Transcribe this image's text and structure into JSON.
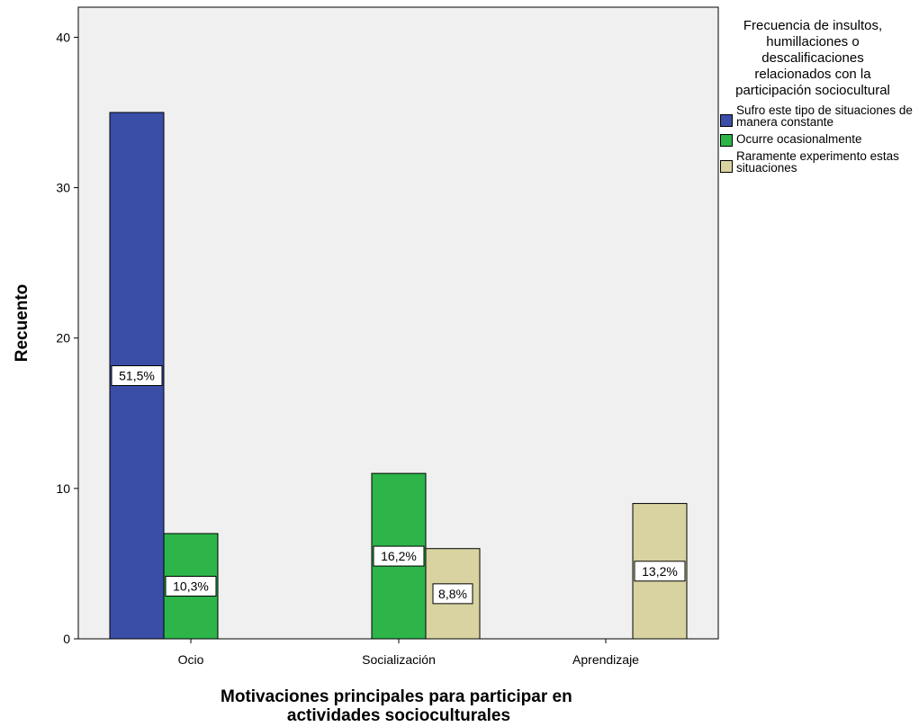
{
  "chart_data": {
    "type": "bar",
    "xlabel": "Motivaciones principales para participar en actividades socioculturales",
    "ylabel": "Recuento",
    "ylim": [
      0,
      42
    ],
    "yticks": [
      "0",
      "10",
      "20",
      "30",
      "40"
    ],
    "categories": [
      "Ocio",
      "Socialización",
      "Aprendizaje"
    ],
    "legend_title": "Frecuencia de insultos, humillaciones o descalificaciones relacionados con la participación sociocultural",
    "legend_position": "right",
    "grid": false,
    "series": [
      {
        "name": "Sufro este tipo de situaciones de manera constante",
        "color": "#3a4ea8",
        "values": [
          35,
          0,
          0
        ],
        "labels": [
          "51,5%",
          "",
          ""
        ]
      },
      {
        "name": "Ocurre ocasionalmente",
        "color": "#2db54a",
        "values": [
          7,
          11,
          0
        ],
        "labels": [
          "10,3%",
          "16,2%",
          ""
        ]
      },
      {
        "name": "Raramente experimento estas situaciones",
        "color": "#d8d3a0",
        "values": [
          0,
          6,
          9
        ],
        "labels": [
          "",
          "8,8%",
          "13,2%"
        ]
      }
    ]
  }
}
